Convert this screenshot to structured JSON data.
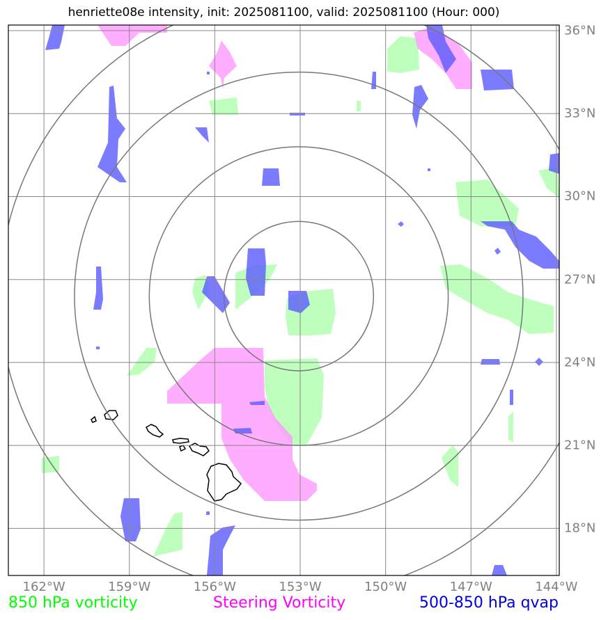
{
  "title": "henriette08e intensity, init: 2025081100, valid: 2025081100 (Hour: 000)",
  "map": {
    "lon_ticks": [
      "162°W",
      "159°W",
      "156°W",
      "153°W",
      "150°W",
      "147°W",
      "144°W"
    ],
    "lat_ticks": [
      "36°N",
      "33°N",
      "30°N",
      "27°N",
      "24°N",
      "21°N",
      "18°N"
    ],
    "lon_range": [
      -163.25,
      -143.9
    ],
    "lat_range": [
      16.3,
      36.2
    ],
    "storm_center": {
      "lon": -153.05,
      "lat": 26.4
    },
    "range_rings_deg": [
      2.7,
      5.4,
      8.1,
      10.8
    ]
  },
  "colors": {
    "vorticity_850": "#b3ffb3",
    "steering_vorticity": "#ff99ff",
    "qvap": "#5a5aff",
    "grid": "#888888",
    "coast": "#000000"
  },
  "legend": {
    "vorticity_850": {
      "label": "850 hPa vorticity",
      "color": "#00ff00"
    },
    "steering": {
      "label": "Steering Vorticity",
      "color": "#ff00ff"
    },
    "qvap": {
      "label": "500-850 hPa qvap",
      "color": "#0000dd"
    }
  }
}
